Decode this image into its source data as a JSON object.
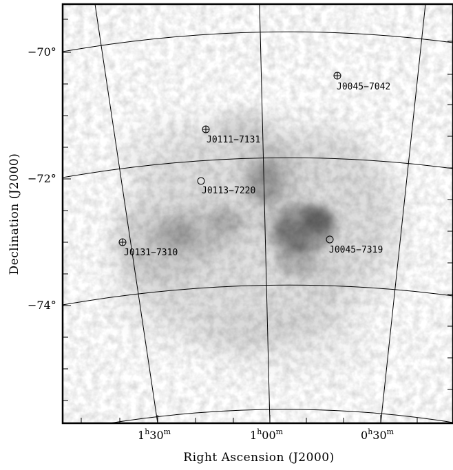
{
  "chart_data": {
    "type": "scatter",
    "description_free": true,
    "xlabel": "Right Ascension (J2000)",
    "ylabel": "Declination (J2000)",
    "x_ticks": [
      {
        "h": "1",
        "hu": "h",
        "m": "30",
        "mu": "m",
        "ra_hours": 1.5
      },
      {
        "h": "1",
        "hu": "h",
        "m": "00",
        "mu": "m",
        "ra_hours": 1.0
      },
      {
        "h": "0",
        "hu": "h",
        "m": "30",
        "mu": "m",
        "ra_hours": 0.5
      }
    ],
    "y_ticks": [
      {
        "label": "−70°",
        "dec": -70
      },
      {
        "label": "−72°",
        "dec": -72
      },
      {
        "label": "−74°",
        "dec": -74
      }
    ],
    "sources": [
      {
        "name": "J0045−7042",
        "ra_hours": 0.75,
        "dec": -70.7,
        "marker": "circle-plus"
      },
      {
        "name": "J0111−7131",
        "ra_hours": 1.18,
        "dec": -71.52,
        "marker": "circle-plus"
      },
      {
        "name": "J0113−7220",
        "ra_hours": 1.22,
        "dec": -72.33,
        "marker": "circle"
      },
      {
        "name": "J0131−7310",
        "ra_hours": 1.52,
        "dec": -73.17,
        "marker": "circle-plus"
      },
      {
        "name": "J0045−7319",
        "ra_hours": 0.75,
        "dec": -73.32,
        "marker": "circle"
      }
    ],
    "background": "greyscale HI column density map of the Small Magellanic Cloud",
    "grid": true
  }
}
